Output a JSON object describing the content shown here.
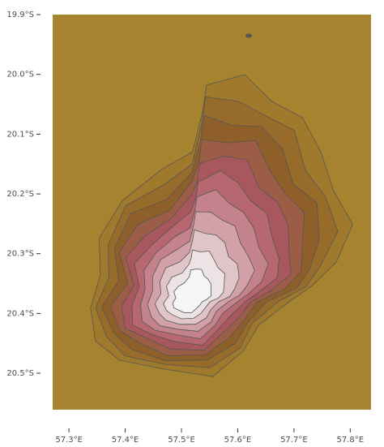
{
  "map": {
    "xlim": [
      57.271,
      57.837
    ],
    "ylim": [
      -20.561,
      -19.9
    ],
    "xticks": [
      {
        "value": 57.3,
        "label": "57.3°E"
      },
      {
        "value": 57.4,
        "label": "57.4°E"
      },
      {
        "value": 57.5,
        "label": "57.5°E"
      },
      {
        "value": 57.6,
        "label": "57.6°E"
      },
      {
        "value": 57.7,
        "label": "57.7°E"
      },
      {
        "value": 57.8,
        "label": "57.8°E"
      }
    ],
    "yticks": [
      {
        "value": -19.9,
        "label": "19.9°S"
      },
      {
        "value": -20.0,
        "label": "20.0°S"
      },
      {
        "value": -20.1,
        "label": "20.1°S"
      },
      {
        "value": -20.2,
        "label": "20.2°S"
      },
      {
        "value": -20.3,
        "label": "20.3°S"
      },
      {
        "value": -20.4,
        "label": "20.4°S"
      },
      {
        "value": -20.5,
        "label": "20.5°S"
      }
    ]
  }
}
